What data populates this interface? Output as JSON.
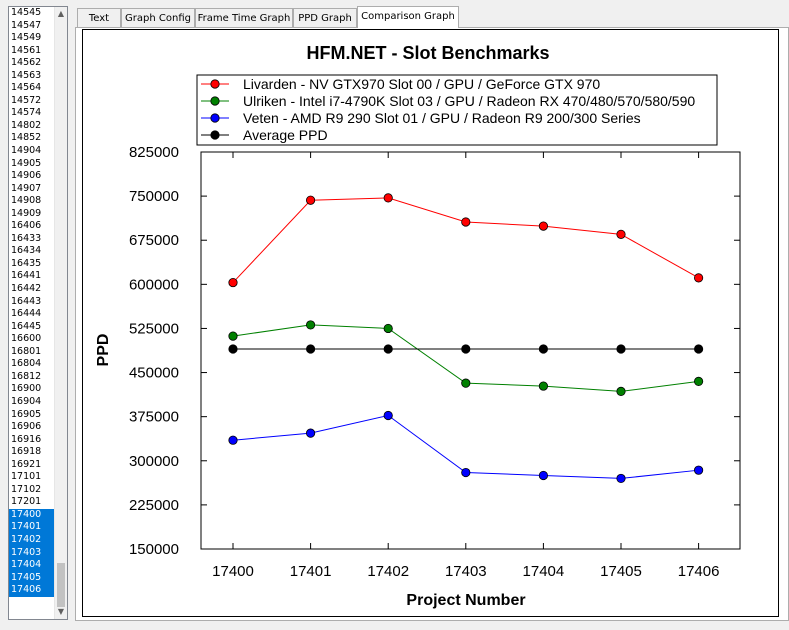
{
  "list": {
    "items": [
      "14545",
      "14547",
      "14549",
      "14561",
      "14562",
      "14563",
      "14564",
      "14572",
      "14574",
      "14802",
      "14852",
      "14904",
      "14905",
      "14906",
      "14907",
      "14908",
      "14909",
      "16406",
      "16433",
      "16434",
      "16435",
      "16441",
      "16442",
      "16443",
      "16444",
      "16445",
      "16600",
      "16801",
      "16804",
      "16812",
      "16900",
      "16904",
      "16905",
      "16906",
      "16916",
      "16918",
      "16921",
      "17101",
      "17102",
      "17201",
      "17400",
      "17401",
      "17402",
      "17403",
      "17404",
      "17405",
      "17406"
    ],
    "selected_start_index": 40,
    "scroll_up_glyph": "▲",
    "scroll_down_glyph": "▼"
  },
  "tabs": [
    {
      "label": "Text",
      "active": false
    },
    {
      "label": "Graph Config",
      "active": false
    },
    {
      "label": "Frame Time Graph",
      "active": false
    },
    {
      "label": "PPD Graph",
      "active": false
    },
    {
      "label": "Comparison Graph",
      "active": true
    }
  ],
  "chart_data": {
    "type": "line",
    "title": "HFM.NET - Slot Benchmarks",
    "xlabel": "Project Number",
    "ylabel": "PPD",
    "categories": [
      "17400",
      "17401",
      "17402",
      "17403",
      "17404",
      "17405",
      "17406"
    ],
    "ylim": [
      150000,
      825000
    ],
    "yticks": [
      150000,
      225000,
      300000,
      375000,
      450000,
      525000,
      600000,
      675000,
      750000,
      825000
    ],
    "ytick_labels": [
      "150000",
      "225000",
      "300000",
      "375000",
      "450000",
      "525000",
      "600000",
      "675000",
      "750000",
      "825000"
    ],
    "grid": false,
    "legend_position": "top",
    "series": [
      {
        "name": "Livarden - NV GTX970 Slot 00 / GPU / GeForce GTX 970",
        "color": "#ff0000",
        "values": [
          603000,
          743000,
          747000,
          706000,
          699000,
          685000,
          611000
        ]
      },
      {
        "name": "Ulriken - Intel i7-4790K Slot 03 / GPU / Radeon RX 470/480/570/580/590",
        "color": "#008000",
        "values": [
          512000,
          531000,
          525000,
          432000,
          427000,
          418000,
          435000
        ]
      },
      {
        "name": "Veten - AMD R9 290 Slot 01 / GPU / Radeon R9 200/300 Series",
        "color": "#0000ff",
        "values": [
          335000,
          347000,
          377000,
          280000,
          275000,
          270000,
          284000
        ]
      },
      {
        "name": "Average PPD",
        "color": "#000000",
        "values": [
          490000,
          490000,
          490000,
          490000,
          490000,
          490000,
          490000
        ]
      }
    ]
  }
}
